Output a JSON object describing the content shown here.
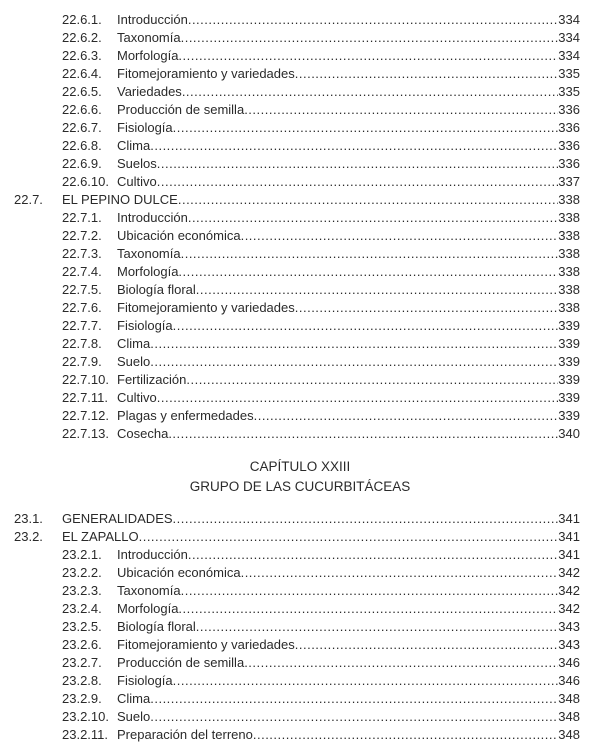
{
  "sections": [
    {
      "level": 1,
      "number": "22.6.1.",
      "title": "Introducción",
      "page": "334"
    },
    {
      "level": 1,
      "number": "22.6.2.",
      "title": "Taxonomía",
      "page": "334"
    },
    {
      "level": 1,
      "number": "22.6.3.",
      "title": "Morfología",
      "page": "334"
    },
    {
      "level": 1,
      "number": "22.6.4.",
      "title": "Fitomejoramiento y variedades",
      "page": "335"
    },
    {
      "level": 1,
      "number": "22.6.5.",
      "title": "Variedades",
      "page": "335"
    },
    {
      "level": 1,
      "number": "22.6.6.",
      "title": "Producción de semilla",
      "page": "336"
    },
    {
      "level": 1,
      "number": "22.6.7.",
      "title": "Fisiología",
      "page": "336"
    },
    {
      "level": 1,
      "number": "22.6.8.",
      "title": "Clima",
      "page": "336"
    },
    {
      "level": 1,
      "number": "22.6.9.",
      "title": "Suelos",
      "page": "336"
    },
    {
      "level": 1,
      "number": "22.6.10.",
      "title": "Cultivo",
      "page": "337"
    },
    {
      "level": 0,
      "number": "22.7.",
      "title": "EL PEPINO DULCE",
      "page": "338"
    },
    {
      "level": 1,
      "number": "22.7.1.",
      "title": "Introducción",
      "page": "338"
    },
    {
      "level": 1,
      "number": "22.7.2.",
      "title": "Ubicación económica",
      "page": "338"
    },
    {
      "level": 1,
      "number": "22.7.3.",
      "title": "Taxonomía",
      "page": "338"
    },
    {
      "level": 1,
      "number": "22.7.4.",
      "title": "Morfología",
      "page": "338"
    },
    {
      "level": 1,
      "number": "22.7.5.",
      "title": "Biología floral",
      "page": "338"
    },
    {
      "level": 1,
      "number": "22.7.6.",
      "title": "Fitomejoramiento y variedades",
      "page": "338"
    },
    {
      "level": 1,
      "number": "22.7.7.",
      "title": "Fisiología",
      "page": "339"
    },
    {
      "level": 1,
      "number": "22.7.8.",
      "title": "Clima",
      "page": "339"
    },
    {
      "level": 1,
      "number": "22.7.9.",
      "title": "Suelo",
      "page": "339"
    },
    {
      "level": 1,
      "number": "22.7.10.",
      "title": "Fertilización",
      "page": "339"
    },
    {
      "level": 1,
      "number": "22.7.11.",
      "title": "Cultivo",
      "page": "339"
    },
    {
      "level": 1,
      "number": "22.7.12.",
      "title": "Plagas y enfermedades",
      "page": "339"
    },
    {
      "level": 1,
      "number": "22.7.13.",
      "title": "Cosecha",
      "page": "340"
    }
  ],
  "chapter": {
    "label": "CAPÍTULO XXIII",
    "title": "GRUPO DE LAS CUCURBITÁCEAS"
  },
  "sections2": [
    {
      "level": 0,
      "number": "23.1.",
      "title": "GENERALIDADES",
      "page": "341"
    },
    {
      "level": 0,
      "number": "23.2.",
      "title": "EL ZAPALLO",
      "page": "341"
    },
    {
      "level": 1,
      "number": "23.2.1.",
      "title": "Introducción",
      "page": "341"
    },
    {
      "level": 1,
      "number": "23.2.2.",
      "title": "Ubicación económica",
      "page": "342"
    },
    {
      "level": 1,
      "number": "23.2.3.",
      "title": "Taxonomía",
      "page": "342"
    },
    {
      "level": 1,
      "number": "23.2.4.",
      "title": "Morfología",
      "page": "342"
    },
    {
      "level": 1,
      "number": "23.2.5.",
      "title": "Biología floral",
      "page": "343"
    },
    {
      "level": 1,
      "number": "23.2.6.",
      "title": "Fitomejoramiento y variedades",
      "page": "343"
    },
    {
      "level": 1,
      "number": "23.2.7.",
      "title": "Producción de semilla",
      "page": "346"
    },
    {
      "level": 1,
      "number": "23.2.8.",
      "title": "Fisiología",
      "page": "346"
    },
    {
      "level": 1,
      "number": "23.2.9.",
      "title": "Clima",
      "page": "348"
    },
    {
      "level": 1,
      "number": "23.2.10.",
      "title": "Suelo",
      "page": "348"
    },
    {
      "level": 1,
      "number": "23.2.11.",
      "title": "Preparación del terreno",
      "page": "348"
    }
  ]
}
